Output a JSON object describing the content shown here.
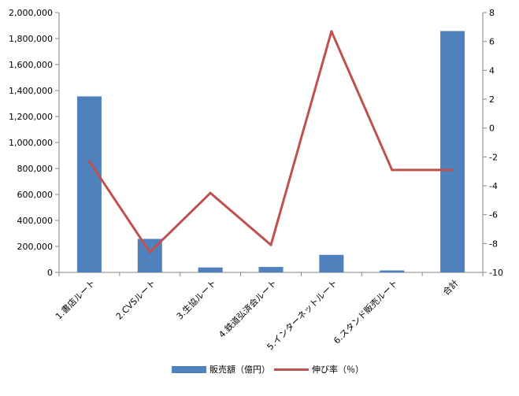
{
  "chart_data": {
    "type": "bar+line",
    "categories": [
      "1.書店ルート",
      "2.CVSルート",
      "3.生協ルート",
      "4.鉄道弘済会ルート",
      "5.インターネットルート",
      "6.スタンド販売ルート",
      "合計"
    ],
    "series": [
      {
        "name": "販売額（億円）",
        "type": "bar",
        "axis": "left",
        "color": "#4f81bd",
        "values": [
          1355000,
          258000,
          38000,
          42000,
          135000,
          15000,
          1858000
        ]
      },
      {
        "name": "伸び率（％）",
        "type": "line",
        "axis": "right",
        "color": "#c0504d",
        "values": [
          -2.3,
          -8.6,
          -4.5,
          -8.1,
          6.7,
          -2.9,
          -2.9
        ]
      }
    ],
    "ylim_left": [
      0,
      2000000
    ],
    "ylim_right": [
      -10,
      8
    ],
    "yticks_left": [
      "0",
      "200,000",
      "400,000",
      "600,000",
      "800,000",
      "1,000,000",
      "1,200,000",
      "1,400,000",
      "1,600,000",
      "1,800,000",
      "2,000,000"
    ],
    "yticks_right": [
      "-10",
      "-8",
      "-6",
      "-4",
      "-2",
      "0",
      "2",
      "4",
      "6",
      "8"
    ],
    "grid": false,
    "legend_position": "bottom"
  }
}
